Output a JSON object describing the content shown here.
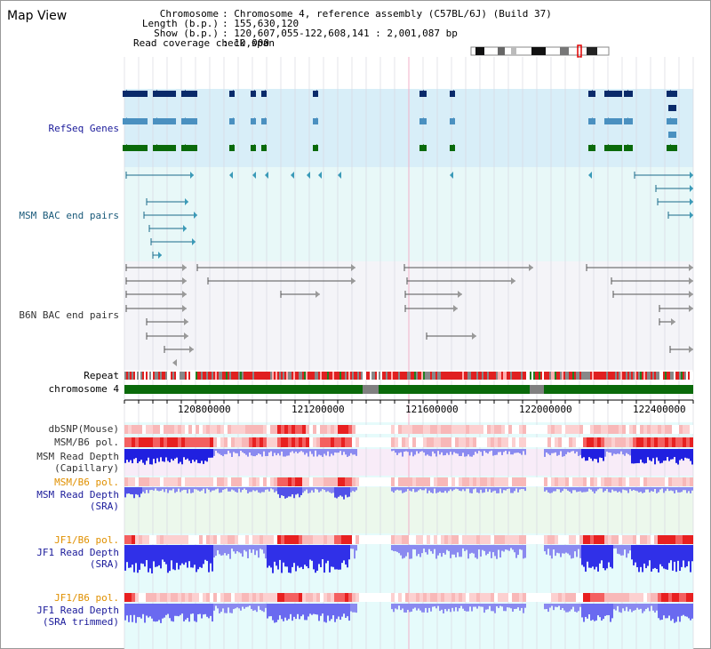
{
  "app": {
    "title": "Map View"
  },
  "header": {
    "chromosome_key": "Chromosome",
    "chromosome_val": ": Chromosome 4, reference assembly (C57BL/6J) (Build 37)",
    "length_key": "Length (b.p.)",
    "length_val": ": 155,630,120",
    "show_key": "Show (b.p.)",
    "show_val": ": 120,607,055-122,608,141 : 2,001,087 bp",
    "coverage_key": "Read coverage check span",
    "coverage_val": ": 10,000"
  },
  "tracks": {
    "refseq": "RefSeq Genes",
    "msm_bac": "MSM BAC end pairs",
    "b6n_bac": "B6N BAC end pairs",
    "repeat": "Repeat",
    "chromosome": "chromosome 4",
    "dbsnp": "dbSNP(Mouse)",
    "msm_b6_pol": "MSM/B6 pol.",
    "msm_read_depth_cap_1": "MSM Read Depth",
    "msm_read_depth_cap_2": "(Capillary)",
    "msm_b6_pol_sra": "MSM/B6 pol.",
    "msm_read_depth_sra_1": "MSM Read Depth",
    "msm_read_depth_sra_2": "(SRA)",
    "jf1_b6_pol": "JF1/B6 pol.",
    "jf1_read_depth_1": "JF1 Read Depth",
    "jf1_read_depth_2": "(SRA)",
    "jf1_b6_pol_trim": "JF1/B6 pol.",
    "jf1_read_depth_trim_1": "JF1 Read Depth",
    "jf1_read_depth_trim_2": "(SRA trimmed)"
  },
  "axis": {
    "ticks": [
      "120800000",
      "121200000",
      "121600000",
      "122000000",
      "122400000"
    ]
  },
  "colors": {
    "refseq_bg": "#d8eef8",
    "msm_bac_bg": "#e8f8f8",
    "b6n_bg": "#f4f4f8",
    "chrom_green": "#0a6a0a",
    "repeat_red": "#e02020",
    "depth_blue": "#3a3ae8",
    "pol_red": "#e83030"
  }
}
